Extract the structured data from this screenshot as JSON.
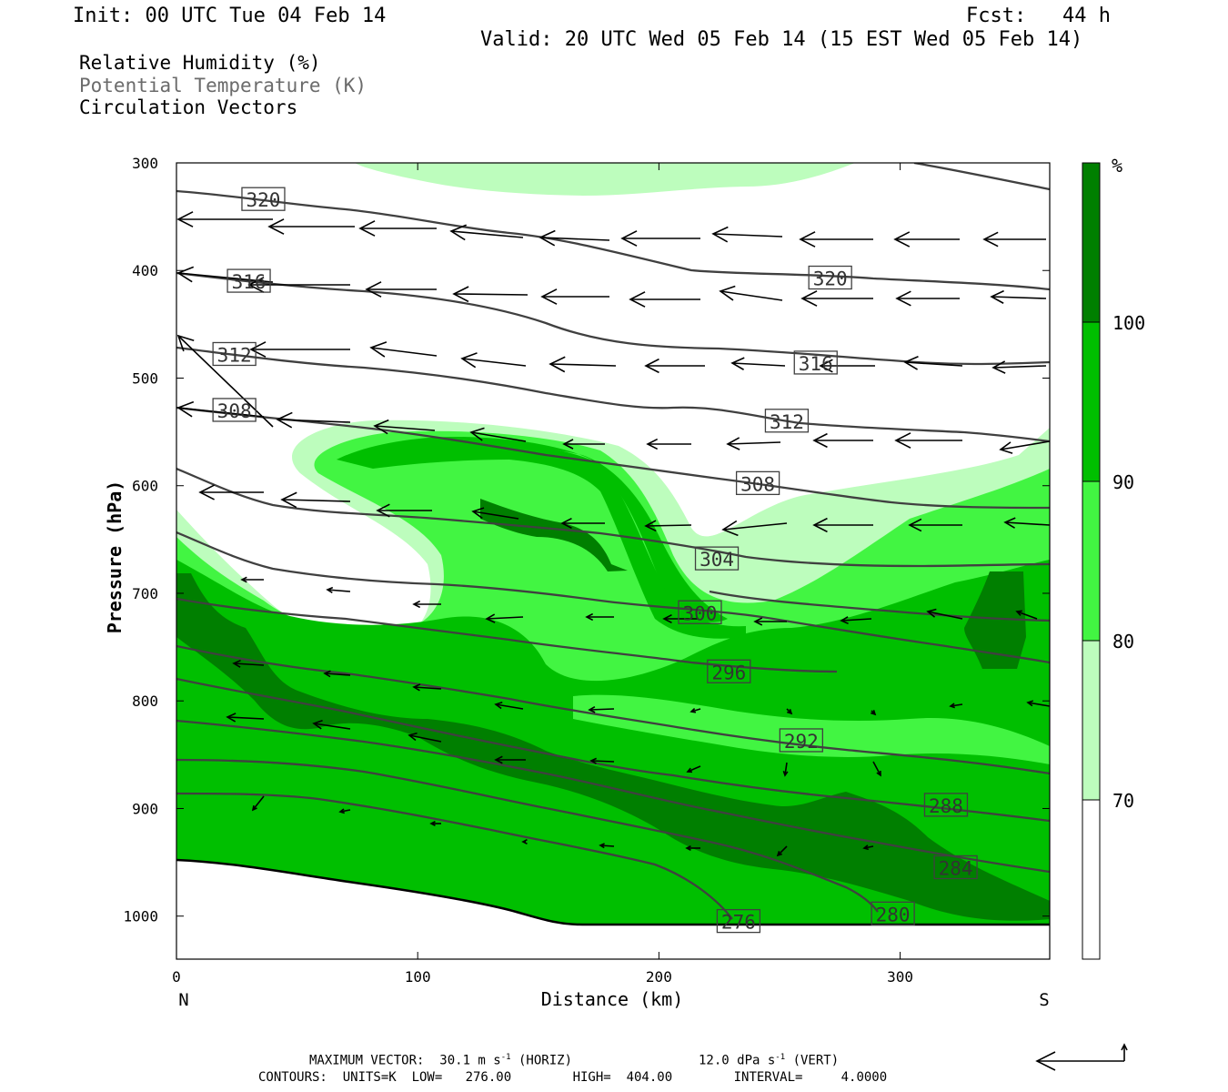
{
  "header": {
    "init": "Init: 00 UTC Tue 04 Feb 14",
    "fcst": "Fcst:   44 h",
    "valid": "Valid: 20 UTC Wed 05 Feb 14 (15 EST Wed 05 Feb 14)"
  },
  "legend_lines": {
    "rh": "Relative Humidity (%)",
    "theta": "Potential Temperature (K)",
    "vectors": "Circulation Vectors"
  },
  "footer": {
    "max_vector": "MAXIMUM VECTOR:  30.1 m s",
    "horiz": " (HORIZ)",
    "vert_val": "12.0 dPa s",
    "vert": " (VERT)",
    "exp": "-1",
    "contours": "CONTOURS:  UNITS=K  LOW=   276.00        HIGH=  404.00        INTERVAL=     4.0000"
  },
  "colors": {
    "rh70": "#bdfdbd",
    "rh80": "#42f542",
    "rh90": "#00bf00",
    "rh100": "#007f00",
    "contour": "#404040"
  },
  "chart_data": {
    "type": "cross-section",
    "xlabel": "Distance (km)",
    "ylabel": "Pressure (hPa)",
    "x_ticks": [
      0,
      100,
      200,
      300
    ],
    "xlim": [
      0,
      362
    ],
    "y_ticks": [
      300,
      400,
      500,
      600,
      700,
      800,
      900,
      1000
    ],
    "ylim": [
      300,
      1040
    ],
    "y_scale": "linear, inverted",
    "x_end_labels": {
      "left": "N",
      "right": "S"
    },
    "colorbar": {
      "unit": "%",
      "levels": [
        70,
        80,
        90,
        100
      ],
      "colors": [
        "#ffffff",
        "#bdfdbd",
        "#42f542",
        "#00bf00",
        "#007f00"
      ]
    },
    "contour_labels": [
      {
        "value": "320",
        "x": 36,
        "p": 334
      },
      {
        "value": "320",
        "x": 271,
        "p": 407
      },
      {
        "value": "316",
        "x": 30,
        "p": 410
      },
      {
        "value": "316",
        "x": 265,
        "p": 486
      },
      {
        "value": "312",
        "x": 24,
        "p": 478
      },
      {
        "value": "312",
        "x": 253,
        "p": 540
      },
      {
        "value": "308",
        "x": 24,
        "p": 530
      },
      {
        "value": "308",
        "x": 241,
        "p": 598
      },
      {
        "value": "304",
        "x": 224,
        "p": 668
      },
      {
        "value": "300",
        "x": 217,
        "p": 718
      },
      {
        "value": "296",
        "x": 229,
        "p": 773
      },
      {
        "value": "292",
        "x": 259,
        "p": 837
      },
      {
        "value": "288",
        "x": 319,
        "p": 897
      },
      {
        "value": "284",
        "x": 323,
        "p": 955
      },
      {
        "value": "280",
        "x": 297,
        "p": 998
      },
      {
        "value": "276",
        "x": 233,
        "p": 1005
      }
    ],
    "contour_summary": {
      "units": "K",
      "low": 276.0,
      "high": 404.0,
      "interval": 4.0
    },
    "max_vector": {
      "horiz_m_s": 30.1,
      "vert_dPa_s": 12.0
    }
  }
}
